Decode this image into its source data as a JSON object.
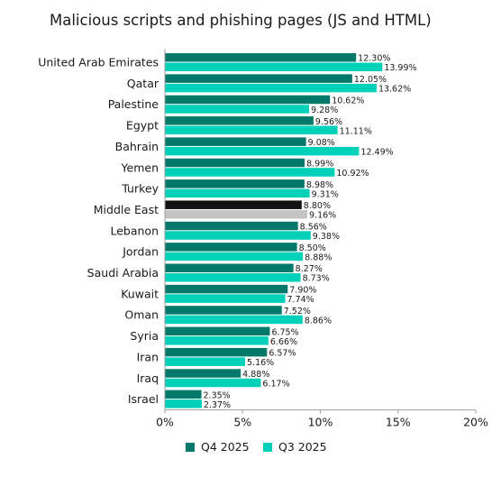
{
  "chart_data": {
    "type": "bar",
    "orientation": "horizontal",
    "title": "Malicious scripts and phishing pages (JS and HTML)",
    "categories": [
      "United Arab Emirates",
      "Qatar",
      "Palestine",
      "Egypt",
      "Bahrain",
      "Yemen",
      "Turkey",
      "Middle East",
      "Lebanon",
      "Jordan",
      "Saudi Arabia",
      "Kuwait",
      "Oman",
      "Syria",
      "Iran",
      "Iraq",
      "Israel"
    ],
    "series": [
      {
        "name": "Q4 2025",
        "color": "#00796b",
        "values": [
          12.3,
          12.05,
          10.62,
          9.56,
          9.08,
          8.99,
          8.98,
          8.8,
          8.56,
          8.5,
          8.27,
          7.9,
          7.52,
          6.75,
          6.57,
          4.88,
          2.35
        ],
        "labels": [
          "12.30%",
          "12.05%",
          "10.62%",
          "9.56%",
          "9.08%",
          "8.99%",
          "8.98%",
          "8.80%",
          "8.56%",
          "8.50%",
          "8.27%",
          "7.90%",
          "7.52%",
          "6.75%",
          "6.57%",
          "4.88%",
          "2.35%"
        ]
      },
      {
        "name": "Q3 2025",
        "color": "#00d1b8",
        "values": [
          13.99,
          13.62,
          9.28,
          11.11,
          12.49,
          10.92,
          9.31,
          9.16,
          9.38,
          8.88,
          8.73,
          7.74,
          8.86,
          6.66,
          5.16,
          6.17,
          2.37
        ],
        "labels": [
          "13.99%",
          "13.62%",
          "9.28%",
          "11.11%",
          "12.49%",
          "10.92%",
          "9.31%",
          "9.16%",
          "9.38%",
          "8.88%",
          "8.73%",
          "7.74%",
          "8.86%",
          "6.66%",
          "5.16%",
          "6.17%",
          "2.37%"
        ]
      }
    ],
    "highlight": {
      "category": "Middle East",
      "colors": [
        "#111111",
        "#c4c4c4"
      ]
    },
    "xlim": [
      0,
      20
    ],
    "xticks": [
      0,
      5,
      10,
      15,
      20
    ],
    "xtick_labels": [
      "0%",
      "5%",
      "10%",
      "15%",
      "20%"
    ],
    "grid": false,
    "legend_position": "bottom"
  }
}
